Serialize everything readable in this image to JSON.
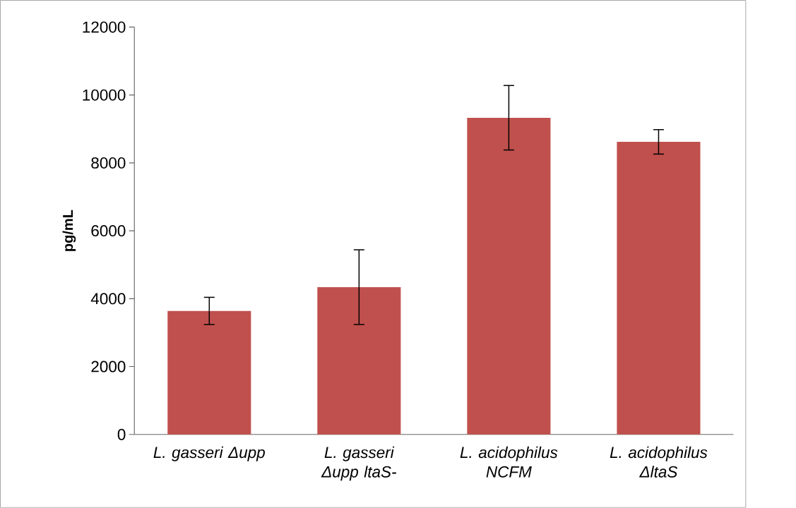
{
  "chart_data": {
    "type": "bar",
    "ylabel": "pg/mL",
    "categories": [
      "L. gasseri Δupp",
      "L. gasseri Δupp ltaS-",
      "L. acidophilus NCFM",
      "L. acidophilus ΔltaS"
    ],
    "values": [
      3640,
      4340,
      9330,
      8620
    ],
    "errors": [
      400,
      1100,
      950,
      360
    ],
    "color": "#c0504d",
    "ylim": [
      0,
      12000
    ],
    "yticks": [
      0,
      2000,
      4000,
      6000,
      8000,
      10000,
      12000
    ],
    "grid": false
  }
}
